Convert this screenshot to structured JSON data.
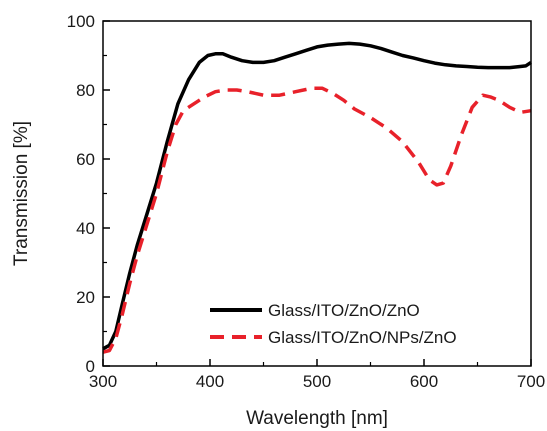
{
  "chart_data": {
    "type": "line",
    "xlabel": "Wavelength [nm]",
    "ylabel": "Transmission [%]",
    "xlim": [
      300,
      700
    ],
    "ylim": [
      0,
      100
    ],
    "x_ticks": [
      "300",
      "400",
      "500",
      "600",
      "700"
    ],
    "y_ticks": [
      "0",
      "20",
      "40",
      "60",
      "80",
      "100"
    ],
    "grid": false,
    "legend_position": "bottom-right",
    "series": [
      {
        "name": "Glass/ITO/ZnO/ZnO",
        "color": "#000000",
        "style": "solid",
        "x": [
          300,
          306,
          312,
          318,
          325,
          332,
          340,
          350,
          360,
          370,
          380,
          390,
          398,
          405,
          412,
          420,
          430,
          440,
          450,
          460,
          470,
          480,
          490,
          500,
          510,
          520,
          530,
          540,
          550,
          560,
          570,
          580,
          590,
          600,
          610,
          620,
          630,
          640,
          650,
          660,
          670,
          680,
          690,
          695,
          700
        ],
        "y": [
          5,
          6,
          10,
          18,
          27,
          35,
          43,
          53,
          65,
          76,
          83,
          88,
          90,
          90.5,
          90.5,
          89.5,
          88.5,
          88,
          88,
          88.5,
          89.5,
          90.5,
          91.5,
          92.5,
          93,
          93.3,
          93.5,
          93.3,
          92.8,
          92,
          91,
          90,
          89.3,
          88.5,
          87.8,
          87.3,
          87,
          86.8,
          86.6,
          86.5,
          86.5,
          86.5,
          86.8,
          87,
          88
        ]
      },
      {
        "name": "Glass/ITO/ZnO/NPs/ZnO",
        "color": "#e8212a",
        "style": "dashed",
        "x": [
          300,
          306,
          312,
          318,
          325,
          332,
          340,
          350,
          360,
          368,
          375,
          385,
          395,
          405,
          415,
          425,
          435,
          450,
          465,
          480,
          495,
          505,
          515,
          525,
          535,
          550,
          565,
          580,
          595,
          605,
          612,
          618,
          625,
          635,
          645,
          655,
          662,
          670,
          680,
          690,
          700
        ],
        "y": [
          4,
          4.5,
          8,
          15,
          24,
          32,
          40,
          50,
          62,
          70,
          74,
          76,
          78,
          79.5,
          80,
          80,
          79.5,
          78.5,
          78.5,
          79.5,
          80.5,
          80.5,
          79,
          77,
          74.5,
          72,
          69,
          65,
          59,
          54,
          52.5,
          53,
          58,
          67,
          75,
          78.5,
          78,
          77,
          75,
          73.5,
          74
        ]
      }
    ]
  }
}
